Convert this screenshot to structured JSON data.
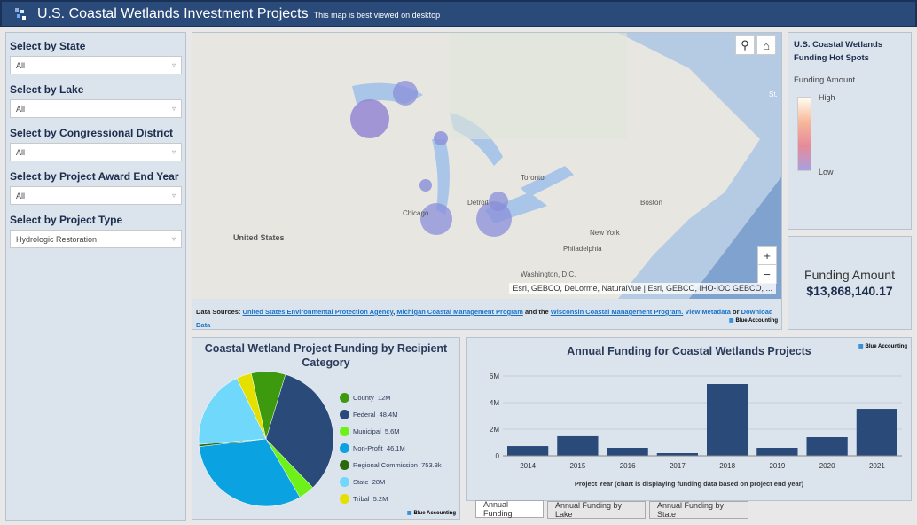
{
  "header": {
    "title": "U.S. Coastal Wetlands Investment Projects",
    "subtitle": "This map is best viewed on desktop",
    "logo_icon": "blue-accounting-logo-icon"
  },
  "filters": [
    {
      "label": "Select by State",
      "value": "All"
    },
    {
      "label": "Select by Lake",
      "value": "All"
    },
    {
      "label": "Select by Congressional District",
      "value": "All"
    },
    {
      "label": "Select by Project Award End Year",
      "value": "All"
    },
    {
      "label": "Select by Project Type",
      "value": "Hydrologic Restoration"
    }
  ],
  "map": {
    "labels": {
      "us": "United States",
      "toronto": "Toronto",
      "detroit": "Detroit",
      "chicago": "Chicago",
      "boston": "Boston",
      "newyork": "New York",
      "philadelphia": "Philadelphia",
      "washington": "Washington, D.C.",
      "st": "St."
    },
    "attribution": "Esri, GEBCO, DeLorme, NaturalVue | Esri, GEBCO, IHO-IOC GEBCO, ...",
    "sources_prefix": "Data Sources:",
    "src1": "United States Environmental Protection Agency",
    "sep1": ",",
    "src2": "Michigan Coastal Management Program",
    "sep2": "and the",
    "src3": "Wisconsin Coastal Management Program.",
    "meta": "View Metadata",
    "or": "or",
    "download": "Download Data",
    "brand": "Blue Accounting"
  },
  "legend": {
    "title": "U.S. Coastal Wetlands Funding Hot Spots",
    "subtitle": "Funding Amount",
    "high": "High",
    "low": "Low"
  },
  "funding": {
    "label": "Funding Amount",
    "value": "$13,868,140.17"
  },
  "chart_data": [
    {
      "type": "pie",
      "title": "Coastal Wetland Project Funding by Recipient Category",
      "categories": [
        "County",
        "Federal",
        "Municipal",
        "Non-Profit",
        "Regional Commission",
        "State",
        "Tribal"
      ],
      "labels": [
        "12M",
        "48.4M",
        "5.6M",
        "46.1M",
        "753.3k",
        "28M",
        "5.2M"
      ],
      "values": [
        12,
        48.4,
        5.6,
        46.1,
        0.7533,
        28,
        5.2
      ],
      "colors": [
        "#3d9a0f",
        "#2a4a7a",
        "#6ef01a",
        "#0aa2e0",
        "#2a6a0a",
        "#6fd8fb",
        "#e6e000"
      ],
      "legend": "right"
    },
    {
      "type": "bar",
      "title": "Annual Funding for Coastal Wetlands Projects",
      "xlabel": "Project Year (chart is displaying funding data based on project end year)",
      "ylabel": "",
      "categories": [
        "2014",
        "2015",
        "2016",
        "2017",
        "2018",
        "2019",
        "2020",
        "2021"
      ],
      "values": [
        730000,
        1470000,
        600000,
        200000,
        5400000,
        600000,
        1400000,
        3530000
      ],
      "ylim": [
        0,
        6000000
      ],
      "yticks": [
        "0",
        "2M",
        "4M",
        "6M"
      ],
      "grid": true,
      "color": "#2a4a7a"
    }
  ],
  "tabs": [
    "Annual Funding",
    "Annual Funding by Lake",
    "Annual Funding by State"
  ]
}
